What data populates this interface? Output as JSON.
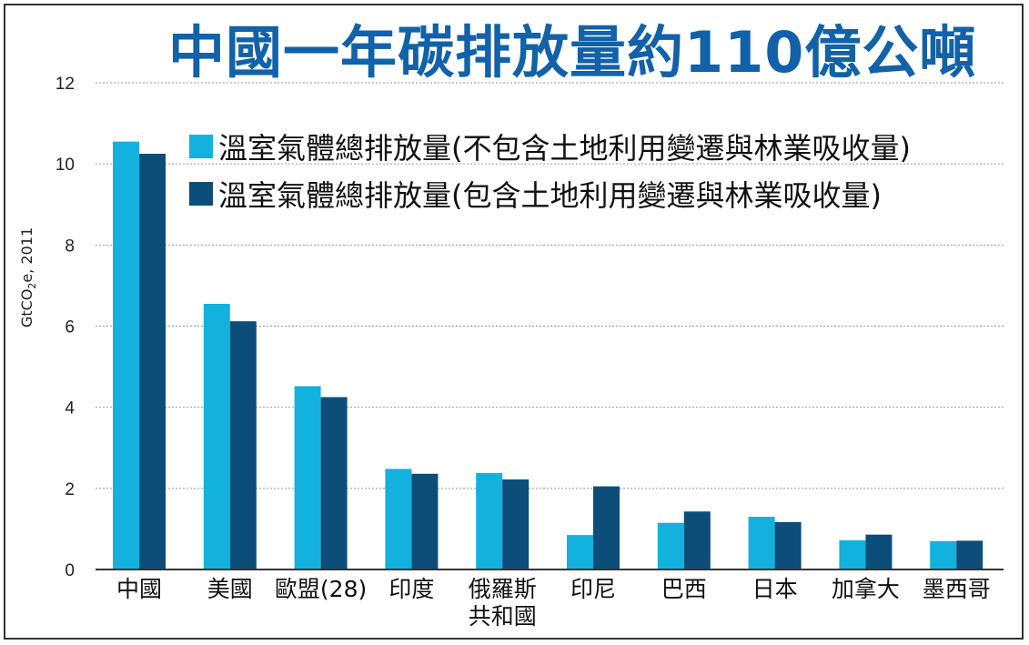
{
  "chart_data": {
    "type": "bar",
    "title": "中國一年碳排放量約110億公噸",
    "ylabel_parts": [
      "GtCO",
      "2",
      "e, 2011"
    ],
    "ylim": [
      0,
      12
    ],
    "yticks": [
      0,
      2,
      4,
      6,
      8,
      10,
      12
    ],
    "grid": true,
    "legend_position": "top-right",
    "categories": [
      [
        "中國"
      ],
      [
        "美國"
      ],
      [
        "歐盟(28)"
      ],
      [
        "印度"
      ],
      [
        "俄羅斯",
        "共和國"
      ],
      [
        "印尼"
      ],
      [
        "巴西"
      ],
      [
        "日本"
      ],
      [
        "加拿大"
      ],
      [
        "墨西哥"
      ]
    ],
    "series": [
      {
        "name": "溫室氣體總排放量(不包含土地利用變遷與林業吸收量)",
        "color": "#13b1dd",
        "values": [
          10.55,
          6.55,
          4.52,
          2.48,
          2.38,
          0.85,
          1.15,
          1.3,
          0.72,
          0.7
        ]
      },
      {
        "name": "溫室氣體總排放量(包含土地利用變遷與林業吸收量)",
        "color": "#0d4d7a",
        "values": [
          10.25,
          6.12,
          4.25,
          2.36,
          2.22,
          2.05,
          1.43,
          1.17,
          0.86,
          0.71
        ]
      }
    ]
  }
}
